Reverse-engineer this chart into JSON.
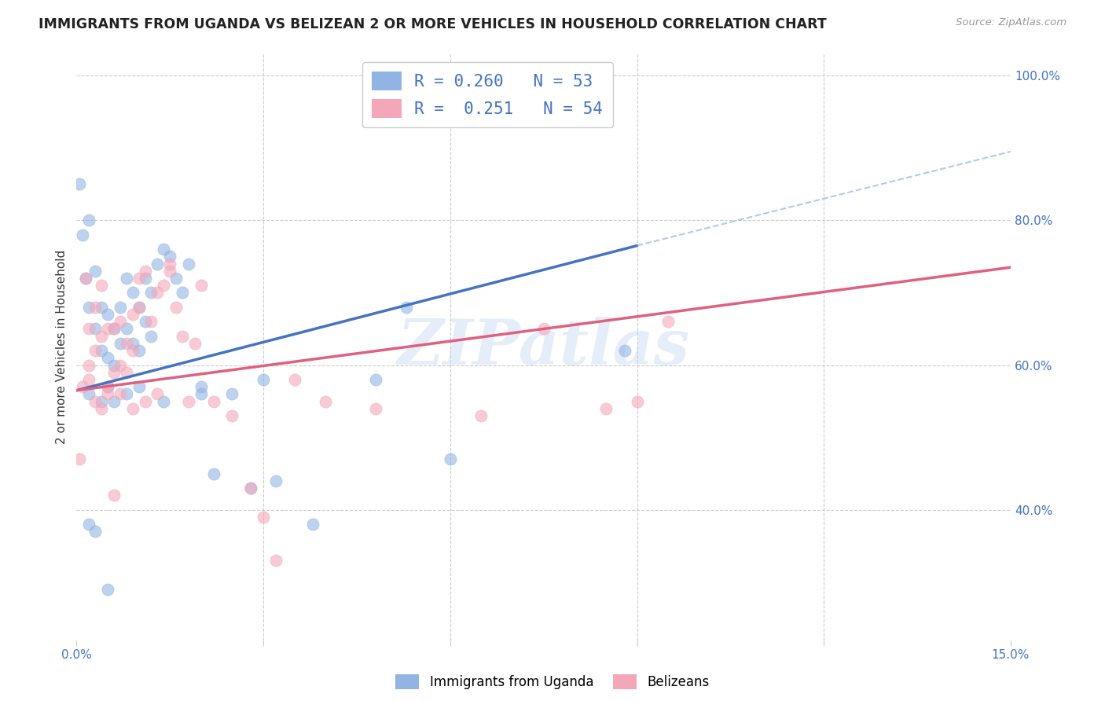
{
  "title": "IMMIGRANTS FROM UGANDA VS BELIZEAN 2 OR MORE VEHICLES IN HOUSEHOLD CORRELATION CHART",
  "source": "Source: ZipAtlas.com",
  "ylabel_label": "2 or more Vehicles in Household",
  "xmin": 0.0,
  "xmax": 0.15,
  "ymin": 0.22,
  "ymax": 1.03,
  "color_blue": "#92b4e3",
  "color_pink": "#f4a7b9",
  "trendline_blue": "#4472c4",
  "trendline_pink": "#e06080",
  "trendline_gray_dashed": "#92b4e3",
  "watermark": "ZIPatlas",
  "blue_trend_x0": 0.0,
  "blue_trend_y0": 0.565,
  "blue_trend_x1": 0.09,
  "blue_trend_y1": 0.765,
  "blue_trend_dash_x1": 0.15,
  "blue_trend_dash_y1": 0.895,
  "pink_trend_x0": 0.0,
  "pink_trend_y0": 0.565,
  "pink_trend_x1": 0.15,
  "pink_trend_y1": 0.735,
  "scatter_blue_x": [
    0.0005,
    0.001,
    0.0015,
    0.002,
    0.002,
    0.003,
    0.003,
    0.004,
    0.004,
    0.005,
    0.005,
    0.005,
    0.006,
    0.006,
    0.007,
    0.007,
    0.008,
    0.008,
    0.009,
    0.009,
    0.01,
    0.01,
    0.011,
    0.011,
    0.012,
    0.012,
    0.013,
    0.014,
    0.015,
    0.016,
    0.017,
    0.018,
    0.02,
    0.022,
    0.025,
    0.028,
    0.032,
    0.038,
    0.048,
    0.053,
    0.06,
    0.088,
    0.002,
    0.004,
    0.006,
    0.008,
    0.01,
    0.014,
    0.02,
    0.03,
    0.002,
    0.003,
    0.005
  ],
  "scatter_blue_y": [
    0.85,
    0.78,
    0.72,
    0.8,
    0.68,
    0.73,
    0.65,
    0.68,
    0.62,
    0.67,
    0.61,
    0.57,
    0.65,
    0.6,
    0.68,
    0.63,
    0.72,
    0.65,
    0.7,
    0.63,
    0.68,
    0.62,
    0.72,
    0.66,
    0.7,
    0.64,
    0.74,
    0.76,
    0.75,
    0.72,
    0.7,
    0.74,
    0.57,
    0.45,
    0.56,
    0.43,
    0.44,
    0.38,
    0.58,
    0.68,
    0.47,
    0.62,
    0.56,
    0.55,
    0.55,
    0.56,
    0.57,
    0.55,
    0.56,
    0.58,
    0.38,
    0.37,
    0.29
  ],
  "scatter_pink_x": [
    0.0005,
    0.001,
    0.0015,
    0.002,
    0.002,
    0.003,
    0.003,
    0.004,
    0.004,
    0.005,
    0.005,
    0.006,
    0.006,
    0.007,
    0.007,
    0.008,
    0.008,
    0.009,
    0.009,
    0.01,
    0.01,
    0.011,
    0.012,
    0.013,
    0.014,
    0.015,
    0.016,
    0.017,
    0.018,
    0.019,
    0.02,
    0.022,
    0.025,
    0.028,
    0.03,
    0.035,
    0.04,
    0.048,
    0.065,
    0.075,
    0.085,
    0.09,
    0.095,
    0.003,
    0.005,
    0.007,
    0.009,
    0.011,
    0.013,
    0.015,
    0.002,
    0.004,
    0.006,
    0.032
  ],
  "scatter_pink_y": [
    0.47,
    0.57,
    0.72,
    0.6,
    0.65,
    0.62,
    0.68,
    0.64,
    0.71,
    0.57,
    0.65,
    0.59,
    0.65,
    0.6,
    0.66,
    0.59,
    0.63,
    0.67,
    0.62,
    0.72,
    0.68,
    0.73,
    0.66,
    0.7,
    0.71,
    0.74,
    0.68,
    0.64,
    0.55,
    0.63,
    0.71,
    0.55,
    0.53,
    0.43,
    0.39,
    0.58,
    0.55,
    0.54,
    0.53,
    0.65,
    0.54,
    0.55,
    0.66,
    0.55,
    0.56,
    0.56,
    0.54,
    0.55,
    0.56,
    0.73,
    0.58,
    0.54,
    0.42,
    0.33
  ]
}
